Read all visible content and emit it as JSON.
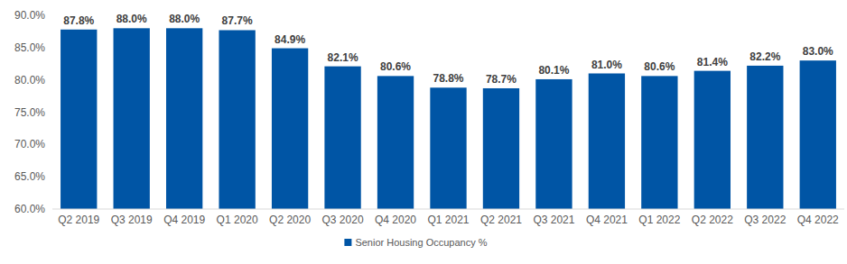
{
  "chart_data": {
    "type": "bar",
    "categories": [
      "Q2 2019",
      "Q3 2019",
      "Q4 2019",
      "Q1 2020",
      "Q2 2020",
      "Q3 2020",
      "Q4 2020",
      "Q1 2021",
      "Q2 2021",
      "Q3 2021",
      "Q4 2021",
      "Q1 2022",
      "Q2 2022",
      "Q3 2022",
      "Q4 2022"
    ],
    "series": [
      {
        "name": "Senior Housing Occupancy %",
        "color": "#0055a5",
        "values": [
          87.8,
          88.0,
          88.0,
          87.7,
          84.9,
          82.1,
          80.6,
          78.8,
          78.7,
          80.1,
          81.0,
          80.6,
          81.4,
          82.2,
          83.0
        ],
        "value_labels": [
          "87.8%",
          "88.0%",
          "88.0%",
          "87.7%",
          "84.9%",
          "82.1%",
          "80.6%",
          "78.8%",
          "78.7%",
          "80.1%",
          "81.0%",
          "80.6%",
          "81.4%",
          "82.2%",
          "83.0%"
        ]
      }
    ],
    "ylim": [
      60,
      90
    ],
    "yticks": [
      {
        "value": 60,
        "label": "60.0%"
      },
      {
        "value": 65,
        "label": "65.0%"
      },
      {
        "value": 70,
        "label": "70.0%"
      },
      {
        "value": 75,
        "label": "75.0%"
      },
      {
        "value": 80,
        "label": "80.0%"
      },
      {
        "value": 85,
        "label": "85.0%"
      },
      {
        "value": 90,
        "label": "90.0%"
      }
    ],
    "grid": false,
    "data_labels": true,
    "legend": "bottom"
  }
}
